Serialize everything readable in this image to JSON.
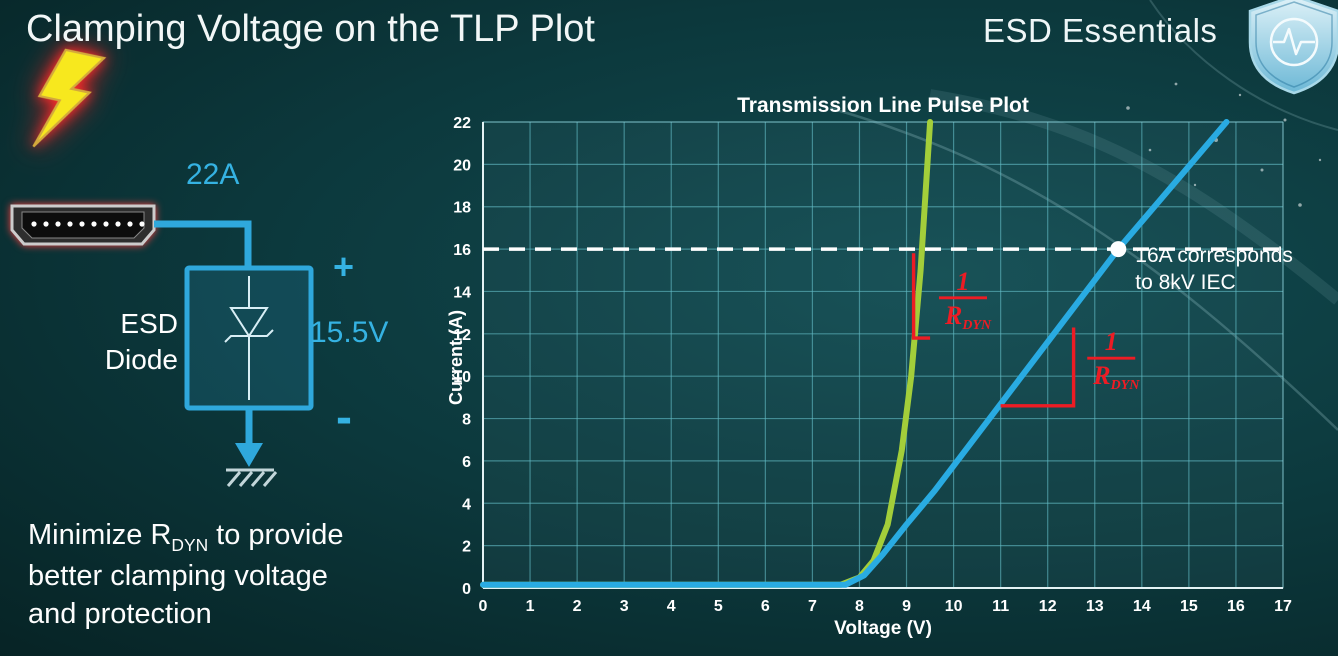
{
  "slide": {
    "title": "Clamping Voltage on the TLP Plot",
    "brand": "ESD Essentials"
  },
  "note": {
    "line1_pre": "Minimize R",
    "line1_sub": "DYN",
    "line1_post": " to provide",
    "line2": "better clamping voltage",
    "line3": "and protection"
  },
  "circuit": {
    "surge_current": "22A",
    "device_label_line1": "ESD",
    "device_label_line2": "Diode",
    "plus": "+",
    "minus": "-",
    "clamp_voltage": "15.5V"
  },
  "chart_data": {
    "type": "line",
    "title": "Transmission Line Pulse Plot",
    "xlabel": "Voltage (V)",
    "ylabel": "Current (A)",
    "xlim": [
      0,
      17
    ],
    "ylim": [
      0,
      22
    ],
    "x_ticks": [
      0,
      1,
      2,
      3,
      4,
      5,
      6,
      7,
      8,
      9,
      10,
      11,
      12,
      13,
      14,
      15,
      16,
      17
    ],
    "y_ticks": [
      0,
      2,
      4,
      6,
      8,
      10,
      12,
      14,
      16,
      18,
      20,
      22
    ],
    "grid": true,
    "series": [
      {
        "name": "green-curve",
        "color": "#a3ce3a",
        "points": [
          [
            0,
            0.15
          ],
          [
            7.6,
            0.15
          ],
          [
            8.0,
            0.5
          ],
          [
            8.3,
            1.3
          ],
          [
            8.6,
            3.0
          ],
          [
            8.9,
            6.5
          ],
          [
            9.1,
            10.0
          ],
          [
            9.3,
            15.0
          ],
          [
            9.5,
            22.0
          ]
        ]
      },
      {
        "name": "blue-curve",
        "color": "#29abe2",
        "points": [
          [
            0,
            0.15
          ],
          [
            7.7,
            0.15
          ],
          [
            8.1,
            0.6
          ],
          [
            8.5,
            1.6
          ],
          [
            9.0,
            3.0
          ],
          [
            9.6,
            4.6
          ],
          [
            13.5,
            16.0
          ],
          [
            15.8,
            22.0
          ]
        ]
      }
    ],
    "reference_line": {
      "y": 16,
      "color": "#ffffff",
      "style": "dashed"
    },
    "marker": {
      "x": 13.5,
      "y": 16,
      "color": "#ffffff"
    },
    "marker_label_line1": "16A corresponds",
    "marker_label_line2": "to 8kV IEC",
    "slope_labels": [
      {
        "numerator": "1",
        "denominator_main": "R",
        "denominator_sub": "DYN",
        "color": "#ed1c24",
        "x": 10.2,
        "y": 13.7,
        "elbow": [
          [
            9.15,
            15.8
          ],
          [
            9.15,
            11.8
          ],
          [
            9.5,
            11.8
          ]
        ]
      },
      {
        "numerator": "1",
        "denominator_main": "R",
        "denominator_sub": "DYN",
        "color": "#ed1c24",
        "x": 13.35,
        "y": 10.85,
        "elbow": [
          [
            11.0,
            8.6
          ],
          [
            12.55,
            8.6
          ],
          [
            12.55,
            12.3
          ]
        ]
      }
    ]
  }
}
